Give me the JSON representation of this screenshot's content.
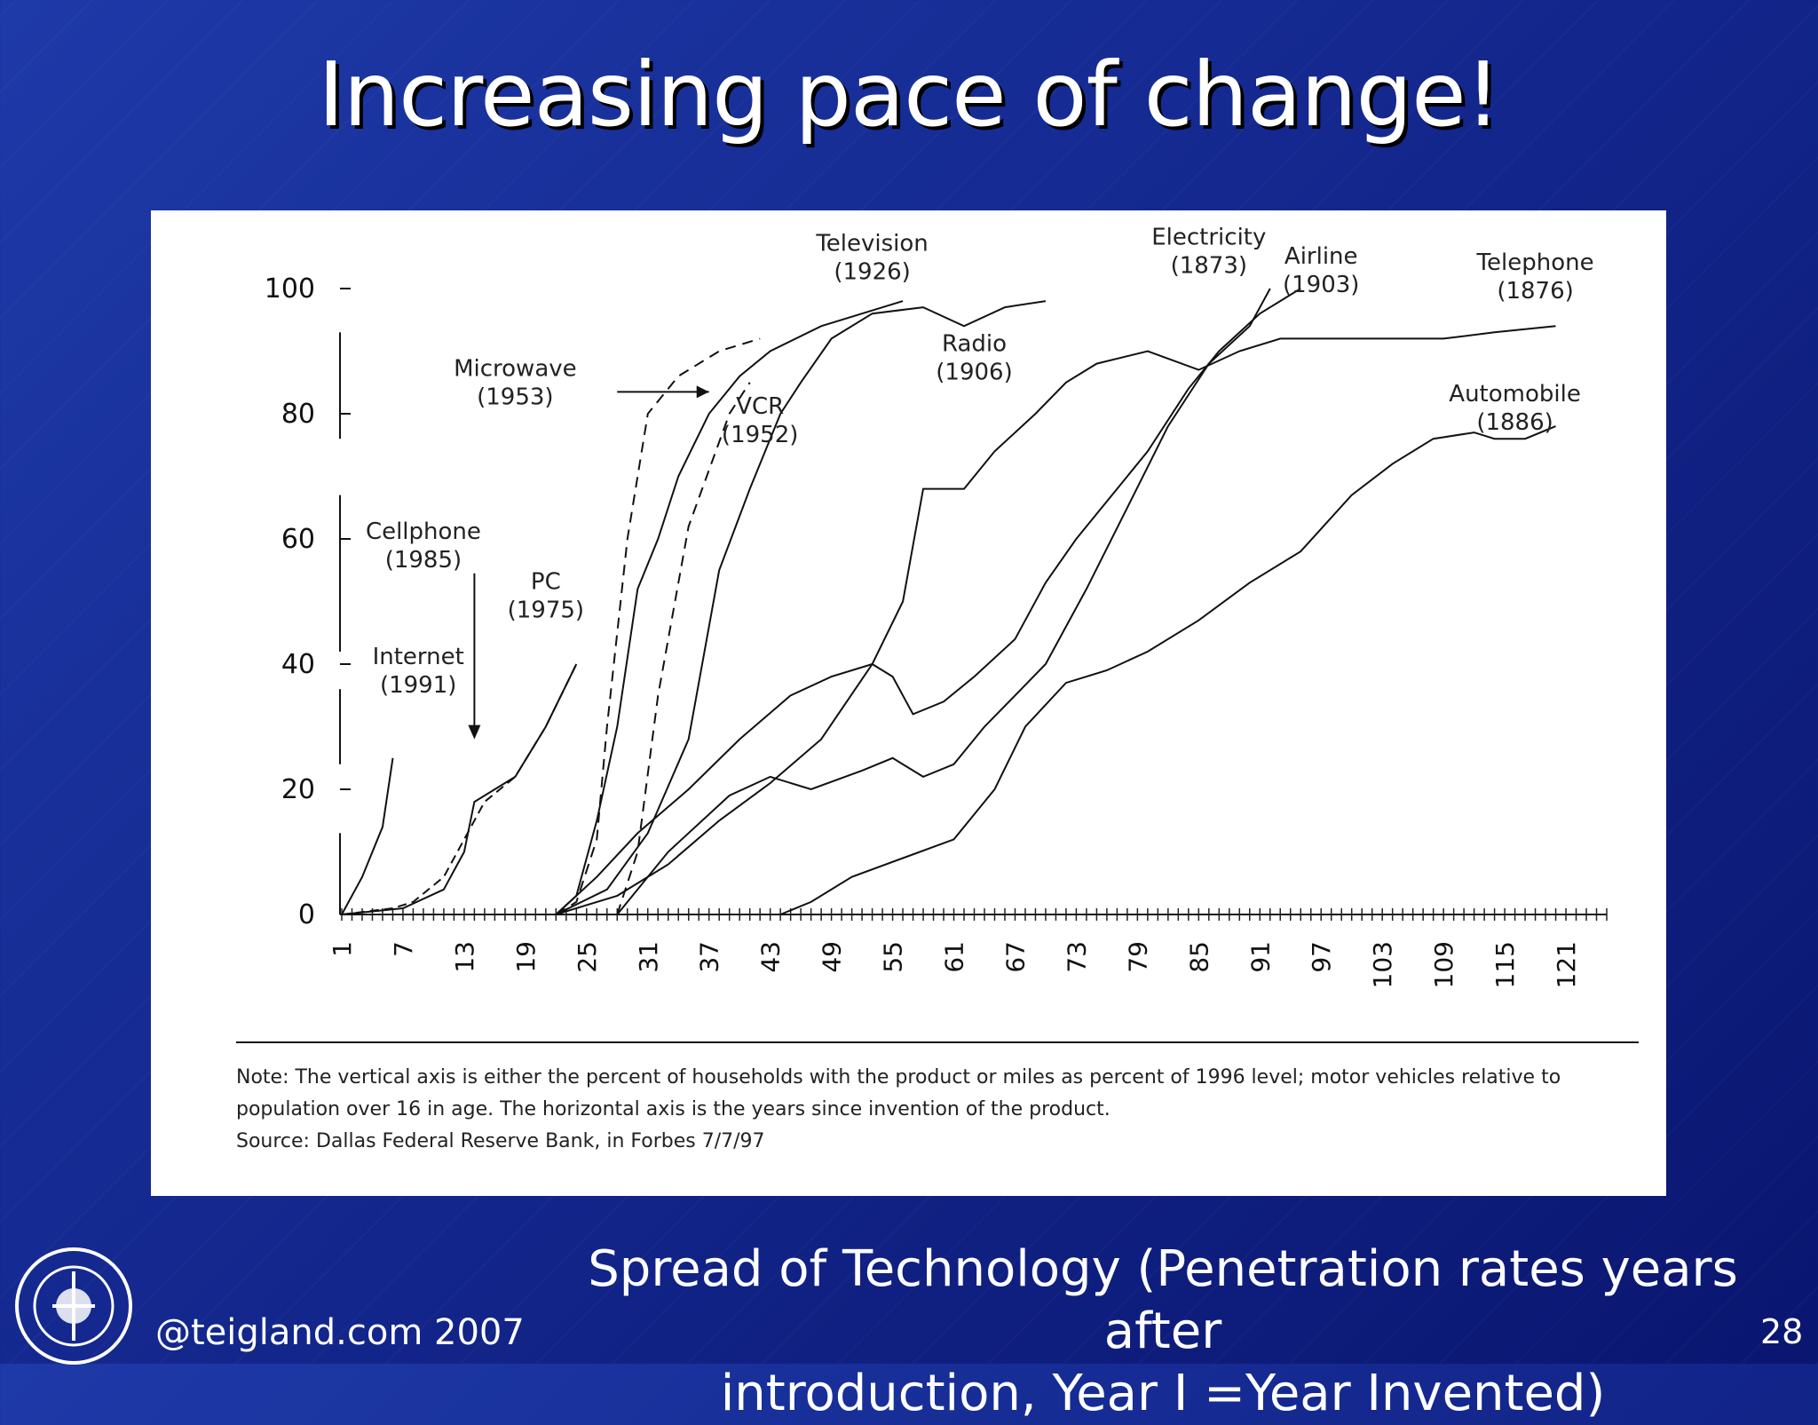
{
  "slide": {
    "title": "Increasing pace of change!",
    "caption_line1": "Spread of Technology (Penetration rates years after",
    "caption_line2": "introduction, Year I =Year Invented)",
    "credit": "@teigland.com 2007",
    "page_number": "28"
  },
  "notes": {
    "line1": "Note: The vertical axis is either the percent of households with the product or miles as percent of 1996 level; motor vehicles relative to",
    "line2": "population over 16 in age. The horizontal axis is the years since invention of the product.",
    "source": "Source: Dallas Federal Reserve Bank, in Forbes 7/7/97"
  },
  "chart_data": {
    "type": "line",
    "xlabel": "",
    "ylabel": "",
    "xlim": [
      1,
      125
    ],
    "ylim": [
      0,
      100
    ],
    "x_ticks": [
      "1",
      "7",
      "13",
      "19",
      "25",
      "31",
      "37",
      "43",
      "49",
      "55",
      "61",
      "67",
      "73",
      "79",
      "85",
      "91",
      "97",
      "103",
      "109",
      "115",
      "121"
    ],
    "y_ticks": [
      "0",
      "20",
      "40",
      "60",
      "80",
      "100"
    ],
    "series": [
      {
        "name": "Internet",
        "year": "(1991)",
        "points": [
          [
            1,
            0
          ],
          [
            3,
            6
          ],
          [
            5,
            14
          ],
          [
            6,
            25
          ]
        ]
      },
      {
        "name": "Cellphone",
        "year": "(1985)",
        "points": [
          [
            1,
            0
          ],
          [
            6,
            1
          ],
          [
            8,
            2
          ],
          [
            11,
            6
          ],
          [
            13,
            12
          ],
          [
            15,
            18
          ],
          [
            18,
            22
          ],
          [
            21,
            30
          ],
          [
            24,
            40
          ]
        ]
      },
      {
        "name": "PC",
        "year": "(1975)",
        "points": [
          [
            1,
            0
          ],
          [
            7,
            1
          ],
          [
            11,
            4
          ],
          [
            13,
            10
          ],
          [
            14,
            18
          ],
          [
            16,
            20
          ],
          [
            18,
            22
          ],
          [
            21,
            30
          ],
          [
            24,
            40
          ]
        ]
      },
      {
        "name": "Microwave",
        "year": "(1953)",
        "points": [
          [
            22,
            0
          ],
          [
            24,
            2
          ],
          [
            26,
            12
          ],
          [
            27,
            30
          ],
          [
            29,
            60
          ],
          [
            31,
            80
          ],
          [
            34,
            86
          ],
          [
            38,
            90
          ],
          [
            42,
            92
          ]
        ]
      },
      {
        "name": "VCR",
        "year": "(1952)",
        "points": [
          [
            28,
            0
          ],
          [
            30,
            10
          ],
          [
            32,
            35
          ],
          [
            35,
            62
          ],
          [
            39,
            80
          ],
          [
            41,
            85
          ]
        ]
      },
      {
        "name": "Television",
        "year": "(1926)",
        "points": [
          [
            22,
            0
          ],
          [
            24,
            3
          ],
          [
            26,
            15
          ],
          [
            28,
            30
          ],
          [
            30,
            52
          ],
          [
            32,
            60
          ],
          [
            34,
            70
          ],
          [
            37,
            80
          ],
          [
            40,
            86
          ],
          [
            43,
            90
          ],
          [
            48,
            94
          ],
          [
            52,
            96
          ],
          [
            56,
            98
          ]
        ]
      },
      {
        "name": "Radio",
        "year": "(1906)",
        "points": [
          [
            22,
            0
          ],
          [
            27,
            4
          ],
          [
            31,
            13
          ],
          [
            35,
            28
          ],
          [
            38,
            55
          ],
          [
            41,
            68
          ],
          [
            44,
            80
          ],
          [
            46,
            85
          ],
          [
            49,
            92
          ],
          [
            53,
            96
          ],
          [
            58,
            97
          ],
          [
            62,
            94
          ],
          [
            66,
            97
          ],
          [
            70,
            98
          ]
        ]
      },
      {
        "name": "Electricity",
        "year": "(1873)",
        "points": [
          [
            22,
            0
          ],
          [
            26,
            6
          ],
          [
            30,
            13
          ],
          [
            35,
            20
          ],
          [
            40,
            28
          ],
          [
            45,
            35
          ],
          [
            49,
            38
          ],
          [
            53,
            40
          ],
          [
            55,
            38
          ],
          [
            57,
            32
          ],
          [
            60,
            34
          ],
          [
            63,
            38
          ],
          [
            67,
            44
          ],
          [
            70,
            53
          ],
          [
            73,
            60
          ],
          [
            77,
            68
          ],
          [
            80,
            74
          ],
          [
            84,
            84
          ],
          [
            87,
            90
          ],
          [
            91,
            96
          ],
          [
            95,
            100
          ]
        ]
      },
      {
        "name": "Airline",
        "year": "(1903)",
        "points": [
          [
            28,
            0
          ],
          [
            33,
            10
          ],
          [
            39,
            19
          ],
          [
            43,
            22
          ],
          [
            47,
            20
          ],
          [
            52,
            23
          ],
          [
            55,
            25
          ],
          [
            58,
            22
          ],
          [
            61,
            24
          ],
          [
            64,
            30
          ],
          [
            67,
            35
          ],
          [
            70,
            40
          ],
          [
            74,
            52
          ],
          [
            78,
            65
          ],
          [
            82,
            78
          ],
          [
            86,
            88
          ],
          [
            90,
            94
          ],
          [
            92,
            100
          ]
        ]
      },
      {
        "name": "Telephone",
        "year": "(1876)",
        "points": [
          [
            22,
            0
          ],
          [
            28,
            3
          ],
          [
            33,
            8
          ],
          [
            38,
            15
          ],
          [
            43,
            21
          ],
          [
            48,
            28
          ],
          [
            53,
            40
          ],
          [
            56,
            50
          ],
          [
            58,
            68
          ],
          [
            62,
            68
          ],
          [
            65,
            74
          ],
          [
            69,
            80
          ],
          [
            72,
            85
          ],
          [
            75,
            88
          ],
          [
            80,
            90
          ],
          [
            85,
            87
          ],
          [
            89,
            90
          ],
          [
            93,
            92
          ],
          [
            97,
            92
          ],
          [
            103,
            92
          ],
          [
            109,
            92
          ],
          [
            114,
            93
          ],
          [
            120,
            94
          ]
        ]
      },
      {
        "name": "Automobile",
        "year": "(1886)",
        "points": [
          [
            44,
            0
          ],
          [
            47,
            2
          ],
          [
            51,
            6
          ],
          [
            56,
            9
          ],
          [
            61,
            12
          ],
          [
            65,
            20
          ],
          [
            68,
            30
          ],
          [
            72,
            37
          ],
          [
            76,
            39
          ],
          [
            80,
            42
          ],
          [
            85,
            47
          ],
          [
            90,
            53
          ],
          [
            95,
            58
          ],
          [
            100,
            67
          ],
          [
            104,
            72
          ],
          [
            108,
            76
          ],
          [
            112,
            77
          ],
          [
            114,
            76
          ],
          [
            117,
            76
          ],
          [
            120,
            78
          ]
        ]
      }
    ]
  }
}
